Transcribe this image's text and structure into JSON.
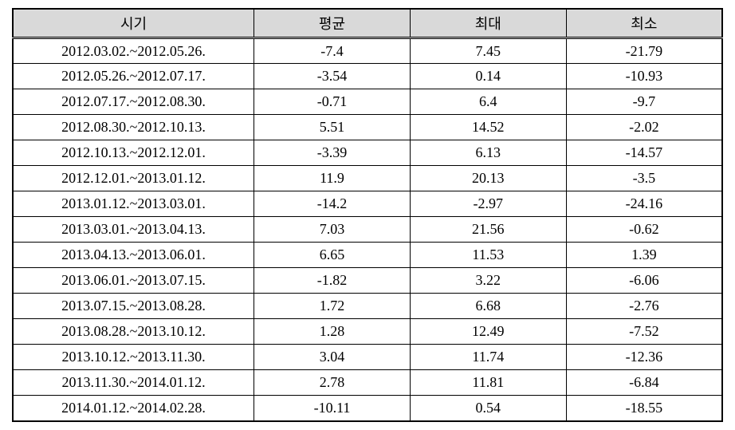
{
  "table": {
    "columns": [
      "시기",
      "평균",
      "최대",
      "최소"
    ],
    "column_widths": [
      "34%",
      "22%",
      "22%",
      "22%"
    ],
    "header_bg_color": "#d9d9d9",
    "border_color": "#000000",
    "font_size": 18,
    "rows": [
      [
        "2012.03.02.~2012.05.26.",
        "-7.4",
        "7.45",
        "-21.79"
      ],
      [
        "2012.05.26.~2012.07.17.",
        "-3.54",
        "0.14",
        "-10.93"
      ],
      [
        "2012.07.17.~2012.08.30.",
        "-0.71",
        "6.4",
        "-9.7"
      ],
      [
        "2012.08.30.~2012.10.13.",
        "5.51",
        "14.52",
        "-2.02"
      ],
      [
        "2012.10.13.~2012.12.01.",
        "-3.39",
        "6.13",
        "-14.57"
      ],
      [
        "2012.12.01.~2013.01.12.",
        "11.9",
        "20.13",
        "-3.5"
      ],
      [
        "2013.01.12.~2013.03.01.",
        "-14.2",
        "-2.97",
        "-24.16"
      ],
      [
        "2013.03.01.~2013.04.13.",
        "7.03",
        "21.56",
        "-0.62"
      ],
      [
        "2013.04.13.~2013.06.01.",
        "6.65",
        "11.53",
        "1.39"
      ],
      [
        "2013.06.01.~2013.07.15.",
        "-1.82",
        "3.22",
        "-6.06"
      ],
      [
        "2013.07.15.~2013.08.28.",
        "1.72",
        "6.68",
        "-2.76"
      ],
      [
        "2013.08.28.~2013.10.12.",
        "1.28",
        "12.49",
        "-7.52"
      ],
      [
        "2013.10.12.~2013.11.30.",
        "3.04",
        "11.74",
        "-12.36"
      ],
      [
        "2013.11.30.~2014.01.12.",
        "2.78",
        "11.81",
        "-6.84"
      ],
      [
        "2014.01.12.~2014.02.28.",
        "-10.11",
        "0.54",
        "-18.55"
      ]
    ]
  }
}
